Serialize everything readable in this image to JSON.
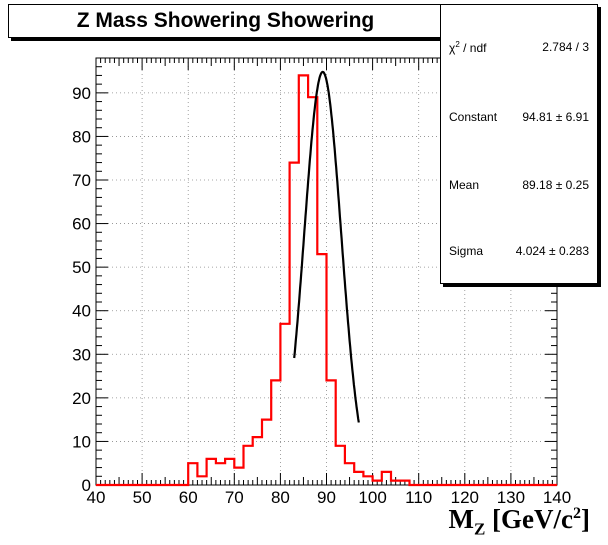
{
  "chart_data": {
    "type": "histogram",
    "title": "Z Mass Showering Showering",
    "xlabel": "M_Z [GeV/c^2]",
    "xlim": [
      40,
      140
    ],
    "ylim": [
      0,
      98
    ],
    "grid": true,
    "x_ticks": [
      40,
      50,
      60,
      70,
      80,
      90,
      100,
      110,
      120,
      130,
      140
    ],
    "y_ticks": [
      0,
      10,
      20,
      30,
      40,
      50,
      60,
      70,
      80,
      90
    ],
    "histogram": {
      "color": "#ff0000",
      "bin_width": 2,
      "bin_low_edges": [
        40,
        42,
        44,
        46,
        48,
        50,
        52,
        54,
        56,
        58,
        60,
        62,
        64,
        66,
        68,
        70,
        72,
        74,
        76,
        78,
        80,
        82,
        84,
        86,
        88,
        90,
        92,
        94,
        96,
        98,
        100,
        102,
        104,
        106,
        108,
        110,
        112,
        114,
        116,
        118,
        120,
        122,
        124,
        126,
        128,
        130,
        132,
        134,
        136,
        138
      ],
      "counts": [
        0,
        0,
        0,
        0,
        0,
        0,
        0,
        0,
        0,
        0,
        5,
        2,
        6,
        5,
        6,
        4,
        9,
        11,
        15,
        24,
        37,
        74,
        94,
        89,
        53,
        24,
        9,
        5,
        3,
        2,
        1,
        3,
        1,
        1,
        0,
        0,
        0,
        0,
        0,
        0,
        0,
        0,
        0,
        0,
        0,
        0,
        0,
        0,
        0,
        0
      ]
    },
    "fit": {
      "type": "gaus",
      "color": "#000000",
      "x_range": [
        83,
        97
      ],
      "constant": 94.81,
      "mean": 89.18,
      "sigma": 4.024
    },
    "stats_box": {
      "rows": [
        {
          "label": "χ",
          "label_sup": "2",
          "label_suffix": " / ndf",
          "value": "2.784 / 3"
        },
        {
          "label": "Constant",
          "value": "94.81 ± 6.91"
        },
        {
          "label": "Mean",
          "value": "89.18 ± 0.25"
        },
        {
          "label": "Sigma",
          "value": "4.024 ± 0.283"
        }
      ]
    },
    "axis_title": {
      "main": "M",
      "sub": "Z",
      "mid": " [GeV/c",
      "sup": "2",
      "end": "]"
    }
  }
}
